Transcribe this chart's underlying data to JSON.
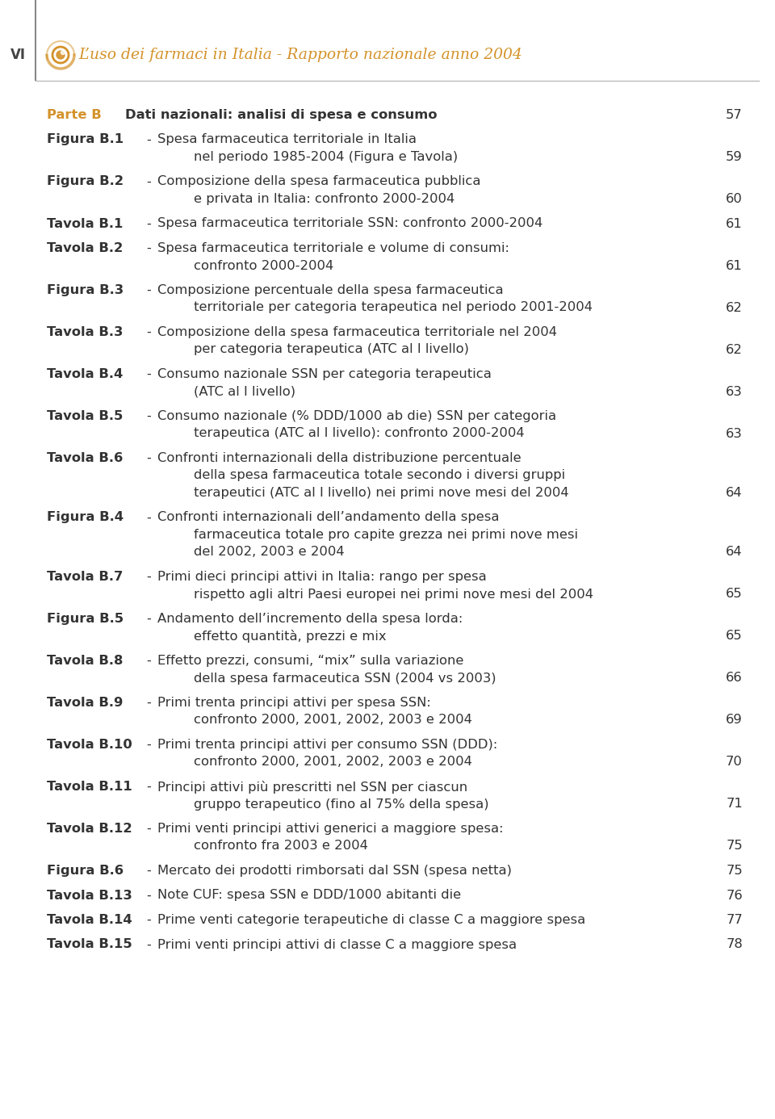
{
  "header_roman": "VI",
  "header_text": "L’uso dei farmaci in Italia - Rapporto nazionale anno 2004",
  "header_color": "#D4922A",
  "bg_color": "#FFFFFF",
  "normal_color": "#333333",
  "entries": [
    {
      "label": "Parte B",
      "label_color": "#D4922A",
      "has_dash": false,
      "text": "Dati nazionali: analisi di spesa e consumo",
      "text_bold": true,
      "page": "57",
      "lines": 1,
      "continuation_lines": []
    },
    {
      "label": "Figura B.1",
      "label_color": "#333333",
      "has_dash": true,
      "text": "Spesa farmaceutica territoriale in Italia",
      "text_bold": false,
      "page": "59",
      "lines": 2,
      "continuation_lines": [
        "nel periodo 1985-2004 (Figura e Tavola)"
      ]
    },
    {
      "label": "Figura B.2",
      "label_color": "#333333",
      "has_dash": true,
      "text": "Composizione della spesa farmaceutica pubblica",
      "text_bold": false,
      "page": "60",
      "lines": 2,
      "continuation_lines": [
        "e privata in Italia: confronto 2000-2004"
      ]
    },
    {
      "label": "Tavola B.1",
      "label_color": "#333333",
      "has_dash": true,
      "text": "Spesa farmaceutica territoriale SSN: confronto 2000-2004",
      "text_bold": false,
      "page": "61",
      "lines": 1,
      "continuation_lines": []
    },
    {
      "label": "Tavola B.2",
      "label_color": "#333333",
      "has_dash": true,
      "text": "Spesa farmaceutica territoriale e volume di consumi:",
      "text_bold": false,
      "page": "61",
      "lines": 2,
      "continuation_lines": [
        "confronto 2000-2004"
      ]
    },
    {
      "label": "Figura B.3",
      "label_color": "#333333",
      "has_dash": true,
      "text": "Composizione percentuale della spesa farmaceutica",
      "text_bold": false,
      "page": "62",
      "lines": 2,
      "continuation_lines": [
        "territoriale per categoria terapeutica nel periodo 2001-2004"
      ]
    },
    {
      "label": "Tavola B.3",
      "label_color": "#333333",
      "has_dash": true,
      "text": "Composizione della spesa farmaceutica territoriale nel 2004",
      "text_bold": false,
      "page": "62",
      "lines": 2,
      "continuation_lines": [
        "per categoria terapeutica (ATC al I livello)"
      ]
    },
    {
      "label": "Tavola B.4",
      "label_color": "#333333",
      "has_dash": true,
      "text": "Consumo nazionale SSN per categoria terapeutica",
      "text_bold": false,
      "page": "63",
      "lines": 2,
      "continuation_lines": [
        "(ATC al I livello)"
      ]
    },
    {
      "label": "Tavola B.5",
      "label_color": "#333333",
      "has_dash": true,
      "text": "Consumo nazionale (% DDD/1000 ab die) SSN per categoria",
      "text_bold": false,
      "page": "63",
      "lines": 2,
      "continuation_lines": [
        "terapeutica (ATC al I livello): confronto 2000-2004"
      ]
    },
    {
      "label": "Tavola B.6",
      "label_color": "#333333",
      "has_dash": true,
      "text": "Confronti internazionali della distribuzione percentuale",
      "text_bold": false,
      "page": "64",
      "lines": 3,
      "continuation_lines": [
        "della spesa farmaceutica totale secondo i diversi gruppi",
        "terapeutici (ATC al I livello) nei primi nove mesi del 2004"
      ]
    },
    {
      "label": "Figura B.4",
      "label_color": "#333333",
      "has_dash": true,
      "text": "Confronti internazionali dell’andamento della spesa",
      "text_bold": false,
      "page": "64",
      "lines": 3,
      "continuation_lines": [
        "farmaceutica totale pro capite grezza nei primi nove mesi",
        "del 2002, 2003 e 2004"
      ]
    },
    {
      "label": "Tavola B.7",
      "label_color": "#333333",
      "has_dash": true,
      "text": "Primi dieci principi attivi in Italia: rango per spesa",
      "text_bold": false,
      "page": "65",
      "lines": 2,
      "continuation_lines": [
        "rispetto agli altri Paesi europei nei primi nove mesi del 2004"
      ]
    },
    {
      "label": "Figura B.5",
      "label_color": "#333333",
      "has_dash": true,
      "text": "Andamento dell’incremento della spesa lorda:",
      "text_bold": false,
      "page": "65",
      "lines": 2,
      "continuation_lines": [
        "effetto quantità, prezzi e mix"
      ]
    },
    {
      "label": "Tavola B.8",
      "label_color": "#333333",
      "has_dash": true,
      "text": "Effetto prezzi, consumi, “mix” sulla variazione",
      "text_bold": false,
      "page": "66",
      "lines": 2,
      "continuation_lines": [
        "della spesa farmaceutica SSN (2004 vs 2003)"
      ]
    },
    {
      "label": "Tavola B.9",
      "label_color": "#333333",
      "has_dash": true,
      "text": "Primi trenta principi attivi per spesa SSN:",
      "text_bold": false,
      "page": "69",
      "lines": 2,
      "continuation_lines": [
        "confronto 2000, 2001, 2002, 2003 e 2004"
      ]
    },
    {
      "label": "Tavola B.10",
      "label_color": "#333333",
      "has_dash": true,
      "text": "Primi trenta principi attivi per consumo SSN (DDD):",
      "text_bold": false,
      "page": "70",
      "lines": 2,
      "continuation_lines": [
        "confronto 2000, 2001, 2002, 2003 e 2004"
      ]
    },
    {
      "label": "Tavola B.11",
      "label_color": "#333333",
      "has_dash": true,
      "text": "Principi attivi più prescritti nel SSN per ciascun",
      "text_bold": false,
      "page": "71",
      "lines": 2,
      "continuation_lines": [
        "gruppo terapeutico (fino al 75% della spesa)"
      ]
    },
    {
      "label": "Tavola B.12",
      "label_color": "#333333",
      "has_dash": true,
      "text": "Primi venti principi attivi generici a maggiore spesa:",
      "text_bold": false,
      "page": "75",
      "lines": 2,
      "continuation_lines": [
        "confronto fra 2003 e 2004"
      ]
    },
    {
      "label": "Figura B.6",
      "label_color": "#333333",
      "has_dash": true,
      "text": "Mercato dei prodotti rimborsati dal SSN (spesa netta)",
      "text_bold": false,
      "page": "75",
      "lines": 1,
      "continuation_lines": []
    },
    {
      "label": "Tavola B.13",
      "label_color": "#333333",
      "has_dash": true,
      "text": "Note CUF: spesa SSN e DDD/1000 abitanti die",
      "text_bold": false,
      "page": "76",
      "lines": 1,
      "continuation_lines": []
    },
    {
      "label": "Tavola B.14",
      "label_color": "#333333",
      "has_dash": true,
      "text": "Prime venti categorie terapeutiche di classe C a maggiore spesa",
      "text_bold": false,
      "page": "77",
      "lines": 1,
      "continuation_lines": []
    },
    {
      "label": "Tavola B.15",
      "label_color": "#333333",
      "has_dash": true,
      "text": "Primi venti principi attivi di classe C a maggiore spesa",
      "text_bold": false,
      "page": "78",
      "lines": 1,
      "continuation_lines": []
    }
  ]
}
